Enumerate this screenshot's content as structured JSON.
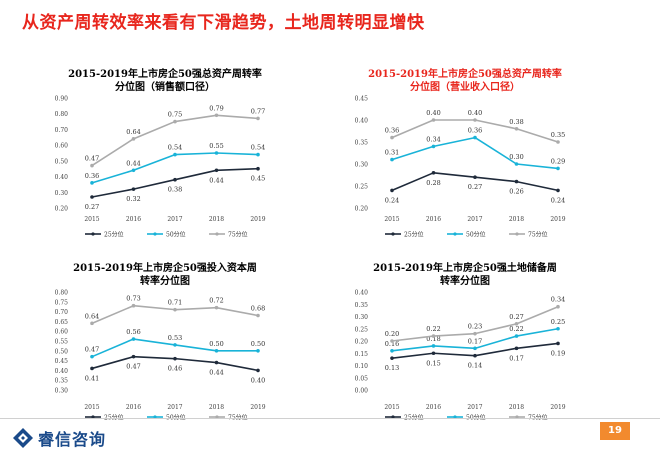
{
  "page": {
    "title": "从资产周转效率来看有下滑趋势，土地周转明显增快",
    "brand": "睿信咨询",
    "page_number": "19"
  },
  "colors": {
    "title": "#e8261d",
    "p25": "#1f2a3a",
    "p50": "#19b3d8",
    "p75": "#ababab",
    "brand": "#1a4a8a",
    "page_badge": "#f28a2e"
  },
  "chart_data": [
    {
      "type": "line",
      "title": "2015-2019年上市房企50强总资产周转率",
      "subtitle": "分位图（销售额口径）",
      "categories": [
        "2015",
        "2016",
        "2017",
        "2018",
        "2019"
      ],
      "ylim": [
        0.2,
        0.9
      ],
      "yticks": [
        "0.20",
        "0.30",
        "0.40",
        "0.50",
        "0.60",
        "0.70",
        "0.80",
        "0.90"
      ],
      "series": [
        {
          "name": "25分位",
          "values": [
            0.27,
            0.32,
            0.38,
            0.44,
            0.45
          ],
          "labels": [
            "0.27",
            "0.32",
            "0.38",
            "0.44",
            "0.45"
          ]
        },
        {
          "name": "50分位",
          "values": [
            0.36,
            0.44,
            0.54,
            0.55,
            0.54
          ],
          "labels": [
            "0.36",
            "0.44",
            "0.54",
            "0.55",
            "0.54"
          ]
        },
        {
          "name": "75分位",
          "values": [
            0.47,
            0.64,
            0.75,
            0.79,
            0.77
          ],
          "labels": [
            "0.47",
            "0.64",
            "0.75",
            "0.79",
            "0.77"
          ]
        }
      ]
    },
    {
      "type": "line",
      "title": "2015-2019年上市房企50强总资产周转率",
      "subtitle": "分位图（营业收入口径）",
      "categories": [
        "2015",
        "2016",
        "2017",
        "2018",
        "2019"
      ],
      "ylim": [
        0.2,
        0.45
      ],
      "yticks": [
        "0.20",
        "0.25",
        "0.30",
        "0.35",
        "0.40",
        "0.45"
      ],
      "series": [
        {
          "name": "25分位",
          "values": [
            0.24,
            0.28,
            0.27,
            0.26,
            0.24
          ],
          "labels": [
            "0.24",
            "0.28",
            "0.27",
            "0.26",
            "0.24"
          ]
        },
        {
          "name": "50分位",
          "values": [
            0.31,
            0.34,
            0.36,
            0.3,
            0.29
          ],
          "labels": [
            "0.31",
            "0.34",
            "0.36",
            "0.30",
            "0.29"
          ]
        },
        {
          "name": "75分位",
          "values": [
            0.36,
            0.4,
            0.4,
            0.38,
            0.35
          ],
          "labels": [
            "0.36",
            "0.40",
            "0.40",
            "0.38",
            "0.35"
          ]
        }
      ]
    },
    {
      "type": "line",
      "title": "2015-2019年上市房企50强投入资本周",
      "subtitle": "转率分位图",
      "categories": [
        "2015",
        "2016",
        "2017",
        "2018",
        "2019"
      ],
      "ylim": [
        0.3,
        0.8
      ],
      "yticks": [
        "0.30",
        "0.35",
        "0.40",
        "0.45",
        "0.50",
        "0.55",
        "0.60",
        "0.65",
        "0.70",
        "0.75",
        "0.80"
      ],
      "series": [
        {
          "name": "25分位",
          "values": [
            0.41,
            0.47,
            0.46,
            0.44,
            0.4
          ],
          "labels": [
            "0.41",
            "0.47",
            "0.46",
            "0.44",
            "0.40"
          ]
        },
        {
          "name": "50分位",
          "values": [
            0.47,
            0.56,
            0.53,
            0.5,
            0.5
          ],
          "labels": [
            "0.47",
            "0.56",
            "0.53",
            "0.50",
            "0.50"
          ]
        },
        {
          "name": "75分位",
          "values": [
            0.64,
            0.73,
            0.71,
            0.72,
            0.68
          ],
          "labels": [
            "0.64",
            "0.73",
            "0.71",
            "0.72",
            "0.68"
          ]
        }
      ]
    },
    {
      "type": "line",
      "title": "2015-2019年上市房企50强土地储备周",
      "subtitle": "转率分位图",
      "categories": [
        "2015",
        "2016",
        "2017",
        "2018",
        "2019"
      ],
      "ylim": [
        0.0,
        0.4
      ],
      "yticks": [
        "0.00",
        "0.05",
        "0.10",
        "0.15",
        "0.20",
        "0.25",
        "0.30",
        "0.35",
        "0.40"
      ],
      "series": [
        {
          "name": "25分位",
          "values": [
            0.13,
            0.15,
            0.14,
            0.17,
            0.19
          ],
          "labels": [
            "0.13",
            "0.15",
            "0.14",
            "0.17",
            "0.19"
          ]
        },
        {
          "name": "50分位",
          "values": [
            0.16,
            0.18,
            0.17,
            0.22,
            0.25
          ],
          "labels": [
            "0.16",
            "0.18",
            "0.17",
            "0.22",
            "0.25"
          ]
        },
        {
          "name": "75分位",
          "values": [
            0.2,
            0.22,
            0.23,
            0.27,
            0.34
          ],
          "labels": [
            "0.20",
            "0.22",
            "0.23",
            "0.27",
            "0.34"
          ]
        }
      ]
    }
  ]
}
